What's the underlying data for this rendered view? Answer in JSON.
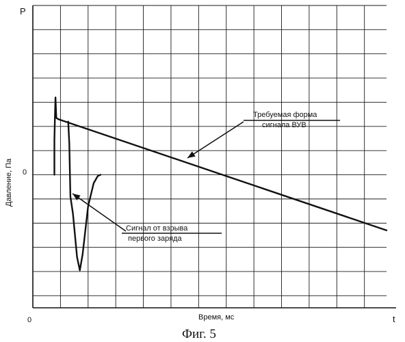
{
  "chart_data": {
    "type": "line",
    "title": "",
    "xlabel": "Время, мс",
    "ylabel": "Давление, Па",
    "y_axis_symbol": "P",
    "x_axis_symbol": "t",
    "x_origin_label": "0",
    "y_zero_label": "0",
    "grid": true,
    "caption": "Фиг. 5",
    "xlim": [
      0,
      12.8
    ],
    "ylim": [
      -5.5,
      7
    ],
    "series": [
      {
        "name": "Требуемая форма сигнала ВУВ",
        "points": [
          [
            0.78,
            0
          ],
          [
            0.78,
            1.4
          ],
          [
            0.8,
            2.4
          ],
          [
            0.82,
            3.2
          ],
          [
            0.85,
            2.35
          ],
          [
            0.92,
            2.3
          ],
          [
            12.8,
            -2.3
          ]
        ]
      },
      {
        "name": "Сигнал от взрыва первого заряда",
        "points": [
          [
            1.28,
            2.2
          ],
          [
            1.32,
            1.3
          ],
          [
            1.36,
            -0.9
          ],
          [
            1.45,
            -1.6
          ],
          [
            1.6,
            -3.4
          ],
          [
            1.7,
            -3.95
          ],
          [
            1.8,
            -3.3
          ],
          [
            2.0,
            -1.3
          ],
          [
            2.2,
            -0.35
          ],
          [
            2.35,
            -0.05
          ],
          [
            2.45,
            0.0
          ]
        ]
      }
    ],
    "annotations": [
      {
        "line1": "Требуемая форма",
        "line2": "сигнала ВУВ"
      },
      {
        "line1": "Сигнал от взрыва",
        "line2": "первого заряда"
      }
    ]
  }
}
